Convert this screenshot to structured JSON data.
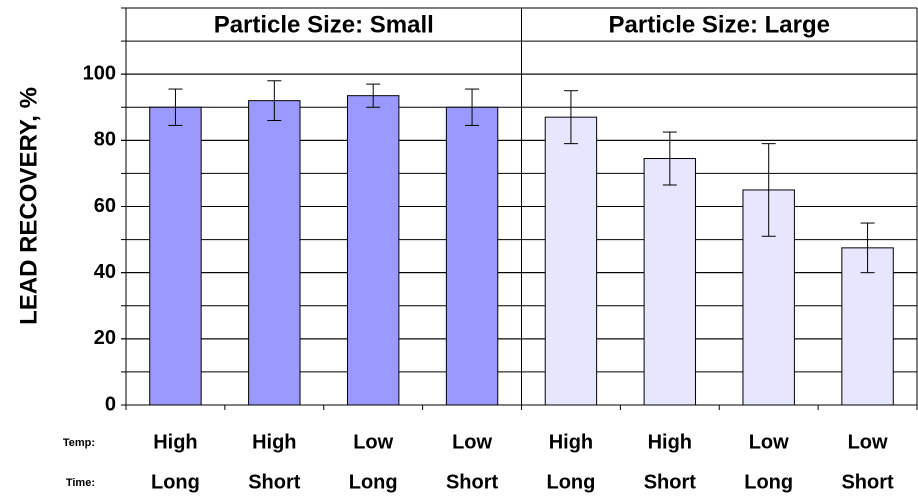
{
  "chart_data": {
    "type": "bar",
    "y_label": "LEAD RECOVERY, %",
    "row_labels": [
      "Temp:",
      "Time:"
    ],
    "ylim": [
      0,
      120
    ],
    "yticks": [
      0,
      20,
      40,
      60,
      80,
      100
    ],
    "grid_step": 10,
    "groups": [
      {
        "title": "Particle Size: Small",
        "color": "#9999ff",
        "categories": [
          [
            "High",
            "Long"
          ],
          [
            "High",
            "Short"
          ],
          [
            "Low",
            "Long"
          ],
          [
            "Low",
            "Short"
          ]
        ],
        "values": [
          90,
          92,
          93.5,
          90
        ],
        "errors": [
          5.5,
          6,
          3.5,
          5.5
        ]
      },
      {
        "title": "Particle Size: Large",
        "color": "#e6e6ff",
        "categories": [
          [
            "High",
            "Long"
          ],
          [
            "High",
            "Short"
          ],
          [
            "Low",
            "Long"
          ],
          [
            "Low",
            "Short"
          ]
        ],
        "values": [
          87,
          74.5,
          65,
          47.5
        ],
        "errors": [
          8,
          8,
          14,
          7.5
        ]
      }
    ]
  }
}
